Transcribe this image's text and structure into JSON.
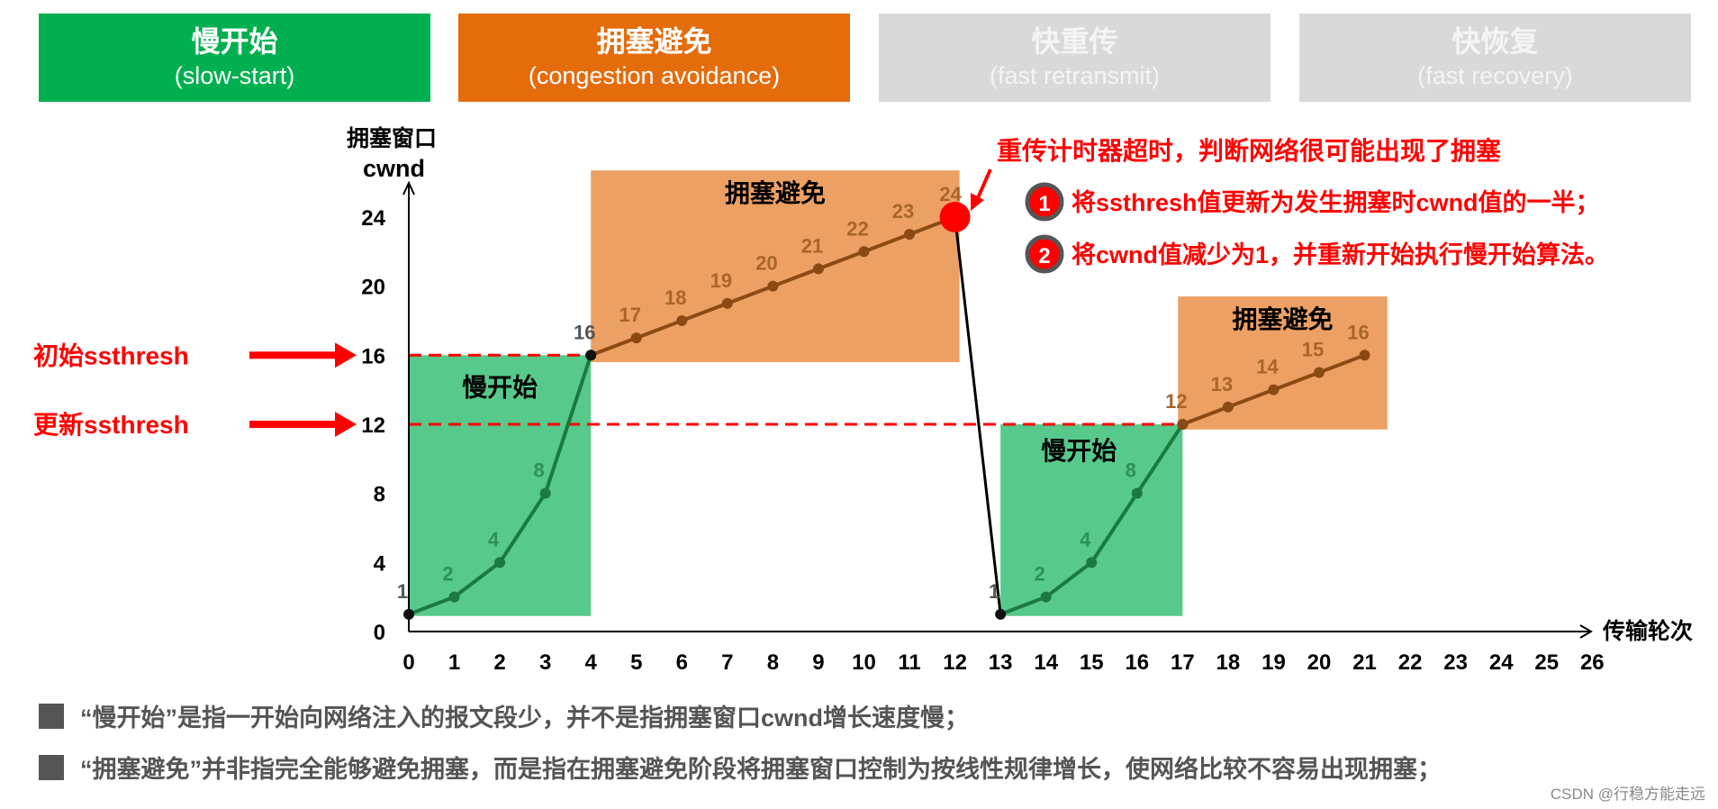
{
  "phases": [
    {
      "zh": "慢开始",
      "en": "(slow-start)",
      "color": "#00b050"
    },
    {
      "zh": "拥塞避免",
      "en": "(congestion avoidance)",
      "color": "#e46c0a"
    },
    {
      "zh": "快重传",
      "en": "(fast retransmit)",
      "color": "#d9d9d9"
    },
    {
      "zh": "快恢复",
      "en": "(fast recovery)",
      "color": "#d9d9d9"
    }
  ],
  "chart_data": {
    "type": "line",
    "ylabel_line1": "拥塞窗口",
    "ylabel_line2": "cwnd",
    "xlabel": "传输轮次",
    "xlim": [
      0,
      26
    ],
    "ylim": [
      0,
      24
    ],
    "xticks": [
      0,
      1,
      2,
      3,
      4,
      5,
      6,
      7,
      8,
      9,
      10,
      11,
      12,
      13,
      14,
      15,
      16,
      17,
      18,
      19,
      20,
      21,
      22,
      23,
      24,
      25,
      26
    ],
    "yticks": [
      0,
      4,
      8,
      12,
      16,
      20,
      24
    ],
    "series": [
      {
        "phase": "slow-start-1",
        "x": [
          0,
          1,
          2,
          3,
          4
        ],
        "y": [
          1,
          2,
          4,
          8,
          16
        ],
        "color": "#1a7a40"
      },
      {
        "phase": "congestion-avoidance-1",
        "x": [
          4,
          5,
          6,
          7,
          8,
          9,
          10,
          11,
          12
        ],
        "y": [
          16,
          17,
          18,
          19,
          20,
          21,
          22,
          23,
          24
        ],
        "color": "#8b4a14"
      },
      {
        "phase": "timeout-drop",
        "x": [
          12,
          13
        ],
        "y": [
          24,
          1
        ],
        "color": "#000000"
      },
      {
        "phase": "slow-start-2",
        "x": [
          13,
          14,
          15,
          16,
          17
        ],
        "y": [
          1,
          2,
          4,
          8,
          12
        ],
        "color": "#1a7a40"
      },
      {
        "phase": "congestion-avoidance-2",
        "x": [
          17,
          18,
          19,
          20,
          21
        ],
        "y": [
          12,
          13,
          14,
          15,
          16
        ],
        "color": "#8b4a14"
      }
    ],
    "regions": [
      {
        "label": "慢开始",
        "x": [
          0,
          4
        ],
        "y": [
          0.9,
          16
        ],
        "color": "#57c98b"
      },
      {
        "label": "拥塞避免",
        "x": [
          4,
          12.1
        ],
        "y": [
          15.6,
          26.7
        ],
        "color": "#eda063"
      },
      {
        "label": "慢开始",
        "x": [
          13,
          17
        ],
        "y": [
          0.9,
          12
        ],
        "color": "#57c98b"
      },
      {
        "label": "拥塞避免",
        "x": [
          16.9,
          21.5
        ],
        "y": [
          11.7,
          19.4
        ],
        "color": "#eda063"
      }
    ],
    "thresholds": [
      {
        "label": "初始ssthresh",
        "y": 16,
        "x_end": 4
      },
      {
        "label": "更新ssthresh",
        "y": 12,
        "x_end": 17
      }
    ],
    "timeout_point": {
      "x": 12,
      "y": 24,
      "color": "#ff0000"
    },
    "annotation": {
      "title": "重传计时器超时，判断网络很可能出现了拥塞",
      "items": [
        {
          "num": "1",
          "text": "将ssthresh值更新为发生拥塞时cwnd值的一半；"
        },
        {
          "num": "2",
          "text": "将cwnd值减少为1，并重新开始执行慢开始算法。"
        }
      ]
    }
  },
  "notes": [
    "“慢开始”是指一开始向网络注入的报文段少，并不是指拥塞窗口cwnd增长速度慢；",
    "“拥塞避免”并非指完全能够避免拥塞，而是指在拥塞避免阶段将拥塞窗口控制为按线性规律增长，使网络比较不容易出现拥塞；"
  ],
  "watermark": "CSDN @行稳方能走远"
}
